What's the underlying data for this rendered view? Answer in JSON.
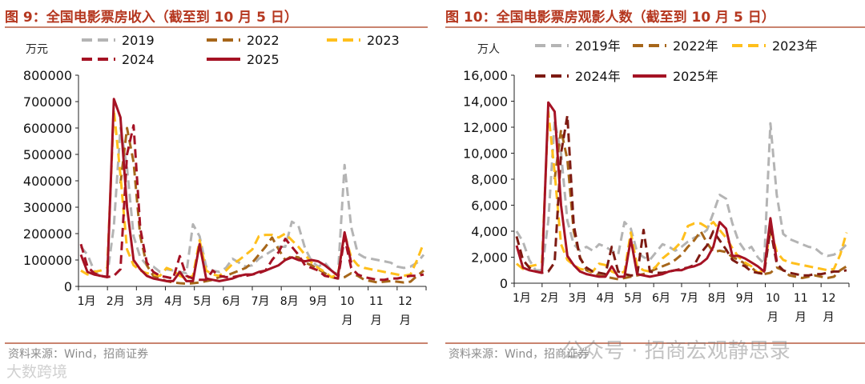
{
  "left": {
    "title": "图 9：全国电影票房收入（截至到 10 月 5 日）",
    "source": "资料来源：Wind，招商证券",
    "chart_data": {
      "type": "line",
      "ylabel": "万元",
      "ylim": [
        0,
        800000
      ],
      "yticks": [
        "800000",
        "700000",
        "600000",
        "500000",
        "400000",
        "300000",
        "200000",
        "100000",
        "0"
      ],
      "xticks": [
        "1月",
        "2月",
        "3月",
        "4月",
        "5月",
        "6月",
        "7月",
        "8月",
        "9月",
        "10\n月",
        "11\n月",
        "12\n月"
      ],
      "x_weeks": [
        1,
        2,
        3,
        4,
        5,
        6,
        7,
        8,
        9,
        10,
        11,
        12,
        13,
        14,
        15,
        16,
        17,
        18,
        19,
        20,
        21,
        22,
        23,
        24,
        25,
        26,
        27,
        28,
        29,
        30,
        31,
        32,
        33,
        34,
        35,
        36,
        37,
        38,
        39,
        40,
        41,
        42,
        43,
        44,
        45,
        46,
        47,
        48,
        49,
        50,
        51,
        52,
        53
      ],
      "series": [
        {
          "name": "2019",
          "color": "#b4b4b4",
          "dash": "11 6",
          "values": [
            150000,
            120000,
            60000,
            35000,
            40000,
            230000,
            600000,
            450000,
            190000,
            110000,
            80000,
            75000,
            55000,
            65000,
            60000,
            55000,
            50000,
            235000,
            190000,
            75000,
            60000,
            55000,
            70000,
            105000,
            90000,
            75000,
            80000,
            105000,
            120000,
            135000,
            150000,
            150000,
            245000,
            230000,
            145000,
            95000,
            75000,
            90000,
            60000,
            45000,
            460000,
            225000,
            125000,
            110000,
            105000,
            100000,
            95000,
            90000,
            75000,
            70000,
            75000,
            90000,
            120000
          ]
        },
        {
          "name": "2022",
          "color": "#a6661a",
          "dash": "11 6",
          "values": [
            null,
            null,
            null,
            null,
            null,
            null,
            390000,
            600000,
            470000,
            190000,
            80000,
            40000,
            30000,
            20000,
            15000,
            12000,
            10000,
            12000,
            15000,
            20000,
            25000,
            35000,
            40000,
            50000,
            60000,
            70000,
            90000,
            120000,
            150000,
            185000,
            140000,
            100000,
            115000,
            110000,
            90000,
            80000,
            65000,
            50000,
            35000,
            30000,
            35000,
            50000,
            40000,
            25000,
            20000,
            15000,
            18000,
            20000,
            18000,
            15000,
            18000,
            40000,
            60000
          ]
        },
        {
          "name": "2023",
          "color": "#ffbf1c",
          "dash": "11 6",
          "values": [
            60000,
            45000,
            55000,
            60000,
            70000,
            670000,
            420000,
            140000,
            80000,
            60000,
            50000,
            45000,
            40000,
            70000,
            60000,
            40000,
            30000,
            40000,
            175000,
            60000,
            45000,
            40000,
            60000,
            85000,
            100000,
            120000,
            140000,
            190000,
            195000,
            195000,
            185000,
            200000,
            175000,
            150000,
            120000,
            90000,
            70000,
            55000,
            35000,
            45000,
            200000,
            110000,
            80000,
            70000,
            65000,
            60000,
            55000,
            50000,
            45000,
            40000,
            45000,
            100000,
            165000
          ]
        },
        {
          "name": "2024",
          "color": "#a51224",
          "dash": "11 6",
          "values": [
            160000,
            75000,
            50000,
            40000,
            35000,
            40000,
            65000,
            500000,
            610000,
            220000,
            90000,
            55000,
            40000,
            35000,
            30000,
            115000,
            40000,
            30000,
            25000,
            25000,
            60000,
            40000,
            35000,
            35000,
            40000,
            40000,
            45000,
            50000,
            60000,
            100000,
            130000,
            180000,
            150000,
            120000,
            80000,
            70000,
            60000,
            40000,
            35000,
            30000,
            185000,
            70000,
            45000,
            35000,
            30000,
            25000,
            25000,
            30000,
            30000,
            35000,
            40000,
            40000,
            45000
          ]
        },
        {
          "name": "2025",
          "color": "#a51224",
          "dash": "",
          "values": [
            120000,
            55000,
            45000,
            40000,
            35000,
            710000,
            640000,
            300000,
            100000,
            65000,
            40000,
            30000,
            25000,
            20000,
            20000,
            55000,
            20000,
            20000,
            160000,
            30000,
            25000,
            20000,
            25000,
            30000,
            40000,
            45000,
            45000,
            55000,
            60000,
            70000,
            80000,
            100000,
            110000,
            100000,
            95000,
            100000,
            95000,
            80000,
            60000,
            40000,
            205000,
            90000,
            null,
            null,
            null,
            null,
            null,
            null,
            null,
            null,
            null,
            null,
            null
          ]
        }
      ]
    }
  },
  "right": {
    "title": "图 10：全国电影票房观影人数（截至到 10 月 5 日）",
    "source": "资料来源：Wind，招商证券",
    "chart_data": {
      "type": "line",
      "ylabel": "万人",
      "ylim": [
        0,
        16000
      ],
      "yticks": [
        "16,000",
        "14,000",
        "12,000",
        "10,000",
        "8,000",
        "6,000",
        "4,000",
        "2,000",
        "0"
      ],
      "xticks": [
        "1月",
        "2月",
        "3月",
        "4月",
        "5月",
        "6月",
        "7月",
        "8月",
        "9月",
        "10\n月",
        "11\n月",
        "12\n月"
      ],
      "x_weeks": [
        1,
        2,
        3,
        4,
        5,
        6,
        7,
        8,
        9,
        10,
        11,
        12,
        13,
        14,
        15,
        16,
        17,
        18,
        19,
        20,
        21,
        22,
        23,
        24,
        25,
        26,
        27,
        28,
        29,
        30,
        31,
        32,
        33,
        34,
        35,
        36,
        37,
        38,
        39,
        40,
        41,
        42,
        43,
        44,
        45,
        46,
        47,
        48,
        49,
        50,
        51,
        52,
        53
      ],
      "series": [
        {
          "name": "2019年",
          "color": "#b4b4b4",
          "dash": "11 6",
          "values": [
            4000,
            3200,
            1800,
            1000,
            1000,
            4800,
            12500,
            10000,
            4800,
            3000,
            2500,
            2800,
            2500,
            3000,
            2800,
            2500,
            2200,
            4700,
            4200,
            2400,
            2000,
            1800,
            2400,
            3000,
            2800,
            2500,
            2800,
            3200,
            3500,
            3700,
            4100,
            5400,
            6800,
            6500,
            4600,
            3200,
            2500,
            2800,
            2000,
            1500,
            12300,
            6800,
            3800,
            3400,
            3200,
            3000,
            2800,
            2700,
            2300,
            2100,
            2200,
            2500,
            3000
          ]
        },
        {
          "name": "2022年",
          "color": "#a6661a",
          "dash": "11 6",
          "values": [
            null,
            null,
            null,
            null,
            null,
            null,
            8000,
            11800,
            9500,
            4000,
            2000,
            1000,
            800,
            600,
            500,
            400,
            300,
            400,
            500,
            600,
            700,
            900,
            1100,
            1300,
            1500,
            1800,
            2200,
            2800,
            3300,
            4000,
            3100,
            2400,
            2500,
            2400,
            2000,
            1800,
            1500,
            1200,
            800,
            700,
            800,
            1200,
            1000,
            600,
            500,
            400,
            500,
            600,
            500,
            400,
            500,
            1000,
            1300
          ]
        },
        {
          "name": "2023年",
          "color": "#ffbf1c",
          "dash": "11 6",
          "values": [
            1500,
            1100,
            1300,
            1400,
            1600,
            13200,
            8500,
            3000,
            1800,
            1400,
            1100,
            1000,
            900,
            1500,
            1400,
            900,
            700,
            900,
            3900,
            1300,
            1000,
            900,
            1300,
            1900,
            2300,
            2700,
            3200,
            4400,
            4600,
            4600,
            4300,
            4700,
            4100,
            3500,
            2700,
            2000,
            1600,
            1300,
            800,
            1000,
            4200,
            2400,
            1800,
            1600,
            1500,
            1400,
            1300,
            1200,
            1100,
            1000,
            1100,
            2200,
            3900
          ]
        },
        {
          "name": "2024年",
          "color": "#7d1a12",
          "dash": "11 6",
          "values": [
            3600,
            1800,
            1200,
            900,
            800,
            900,
            1600,
            10000,
            12900,
            4500,
            1900,
            1200,
            900,
            800,
            700,
            2800,
            900,
            700,
            600,
            600,
            4100,
            900,
            800,
            800,
            900,
            1000,
            1100,
            1200,
            1400,
            2300,
            2900,
            4000,
            3300,
            2600,
            1800,
            1500,
            1300,
            900,
            800,
            700,
            4200,
            1500,
            1000,
            800,
            700,
            600,
            600,
            700,
            700,
            800,
            900,
            900,
            1000
          ]
        },
        {
          "name": "2025年",
          "color": "#a51224",
          "dash": "",
          "values": [
            2900,
            1200,
            1000,
            900,
            800,
            13900,
            13200,
            6000,
            2100,
            1400,
            900,
            700,
            600,
            500,
            500,
            1300,
            500,
            500,
            3400,
            700,
            600,
            500,
            600,
            700,
            900,
            1000,
            1000,
            1200,
            1300,
            1500,
            1900,
            2800,
            4700,
            4200,
            2100,
            2100,
            1900,
            1600,
            1300,
            900,
            5000,
            1700,
            null,
            null,
            null,
            null,
            null,
            null,
            null,
            null,
            null,
            null,
            null
          ]
        }
      ]
    }
  },
  "watermark": "公众号 · 招商宏观静思录",
  "logo": "大数跨境"
}
